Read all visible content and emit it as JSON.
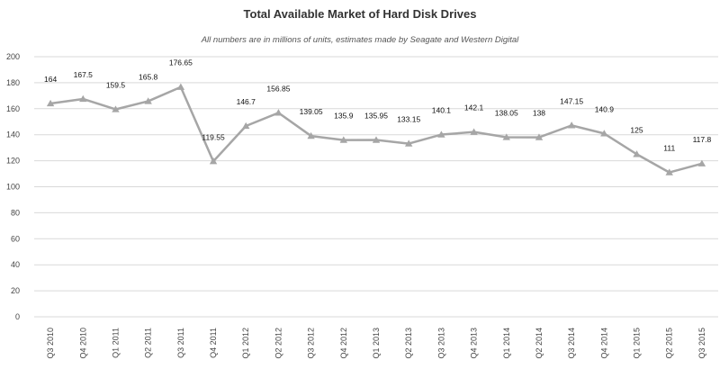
{
  "chart_data": {
    "type": "line",
    "title": "Total Available Market of Hard Disk Drives",
    "subtitle": "All numbers are in millions of units, estimates made by Seagate and Western Digital",
    "categories": [
      "Q3 2010",
      "Q4 2010",
      "Q1 2011",
      "Q2 2011",
      "Q3 2011",
      "Q4 2011",
      "Q1 2012",
      "Q2 2012",
      "Q3 2012",
      "Q4 2012",
      "Q1 2013",
      "Q2 2013",
      "Q3 2013",
      "Q4 2013",
      "Q1 2014",
      "Q2 2014",
      "Q3 2014",
      "Q4 2014",
      "Q1 2015",
      "Q2 2015",
      "Q3 2015"
    ],
    "series": [
      {
        "values": [
          164,
          167.5,
          159.5,
          165.8,
          176.65,
          119.55,
          146.7,
          156.85,
          139.05,
          135.9,
          135.95,
          133.15,
          140.1,
          142.1,
          138.05,
          138,
          147.15,
          140.9,
          125,
          111,
          117.8
        ],
        "labels": [
          "164",
          "167.5",
          "159.5",
          "165.8",
          "176.65",
          "119.55",
          "146.7",
          "156.85",
          "139.05",
          "135.9",
          "135.95",
          "133.15",
          "140.1",
          "142.1",
          "138.05",
          "138",
          "147.15",
          "140.9",
          "125",
          "111",
          "117.8"
        ],
        "color": "#a6a6a6",
        "marker": "triangle"
      }
    ],
    "ylim": [
      0,
      200
    ],
    "yticks": [
      0,
      20,
      40,
      60,
      80,
      100,
      120,
      140,
      160,
      180,
      200
    ],
    "grid": true,
    "gridColor": "#d9d9d9"
  }
}
